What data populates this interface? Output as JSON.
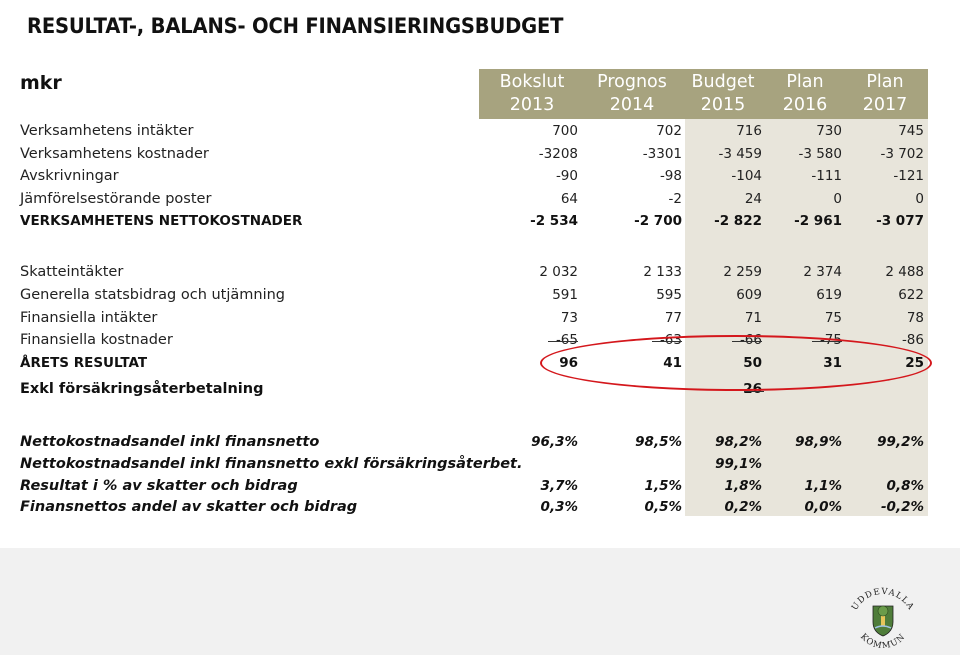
{
  "title": "RESULTAT-, BALANS- OCH FINANSIERINGSBUDGET",
  "unit_label": "mkr",
  "colors": {
    "header_band": "#a7a37f",
    "budget_band": "#e8e5db",
    "highlight": "#d4171c"
  },
  "columns": [
    {
      "line1": "Bokslut",
      "line2": "2013"
    },
    {
      "line1": "Prognos",
      "line2": "2014"
    },
    {
      "line1": "Budget",
      "line2": "2015"
    },
    {
      "line1": "Plan",
      "line2": "2016"
    },
    {
      "line1": "Plan",
      "line2": "2017"
    }
  ],
  "rows": [
    {
      "label": "Verksamhetens intäkter",
      "values": [
        "700",
        "702",
        "716",
        "730",
        "745"
      ]
    },
    {
      "label": "Verksamhetens kostnader",
      "values": [
        "-3208",
        "-3301",
        "-3 459",
        "-3 580",
        "-3 702"
      ]
    },
    {
      "label": "Avskrivningar",
      "values": [
        "-90",
        "-98",
        "-104",
        "-111",
        "-121"
      ]
    },
    {
      "label": "Jämförelsestörande poster",
      "values": [
        "64",
        "-2",
        "24",
        "0",
        "0"
      ]
    },
    {
      "label": "VERKSAMHETENS NETTOKOSTNADER",
      "values": [
        "-2 534",
        "-2 700",
        "-2 822",
        "-2 961",
        "-3 077"
      ]
    },
    {
      "label": "Skatteintäkter",
      "values": [
        "2 032",
        "2 133",
        "2 259",
        "2 374",
        "2 488"
      ]
    },
    {
      "label": "Generella statsbidrag och utjämning",
      "values": [
        "591",
        "595",
        "609",
        "619",
        "622"
      ]
    },
    {
      "label": "Finansiella intäkter",
      "values": [
        "73",
        "77",
        "71",
        "75",
        "78"
      ]
    },
    {
      "label": "Finansiella kostnader",
      "values": [
        "-65",
        "-63",
        "-66",
        "-75",
        "-86"
      ]
    },
    {
      "label": "ÅRETS RESULTAT",
      "values": [
        "96",
        "41",
        "50",
        "31",
        "25"
      ]
    },
    {
      "label": "Exkl försäkringsåterbetalning",
      "values": [
        "",
        "",
        "26",
        "",
        ""
      ]
    },
    {
      "label": "Nettokostnadsandel inkl finansnetto",
      "values": [
        "96,3%",
        "98,5%",
        "98,2%",
        "98,9%",
        "99,2%"
      ]
    },
    {
      "label": "Nettokostnadsandel inkl finansnetto exkl försäkringsåterbet.",
      "values": [
        "",
        "",
        "99,1%",
        "",
        ""
      ]
    },
    {
      "label": "Resultat i % av skatter och bidrag",
      "values": [
        "3,7%",
        "1,5%",
        "1,8%",
        "1,1%",
        "0,8%"
      ]
    },
    {
      "label": "Finansnettos andel av skatter och bidrag",
      "values": [
        "0,3%",
        "0,5%",
        "0,2%",
        "0,0%",
        "-0,2%"
      ]
    }
  ],
  "logo": {
    "top_text": "UDDEVALLA",
    "bottom_text": "KOMMUN",
    "icon": "coat-of-arms-icon"
  }
}
